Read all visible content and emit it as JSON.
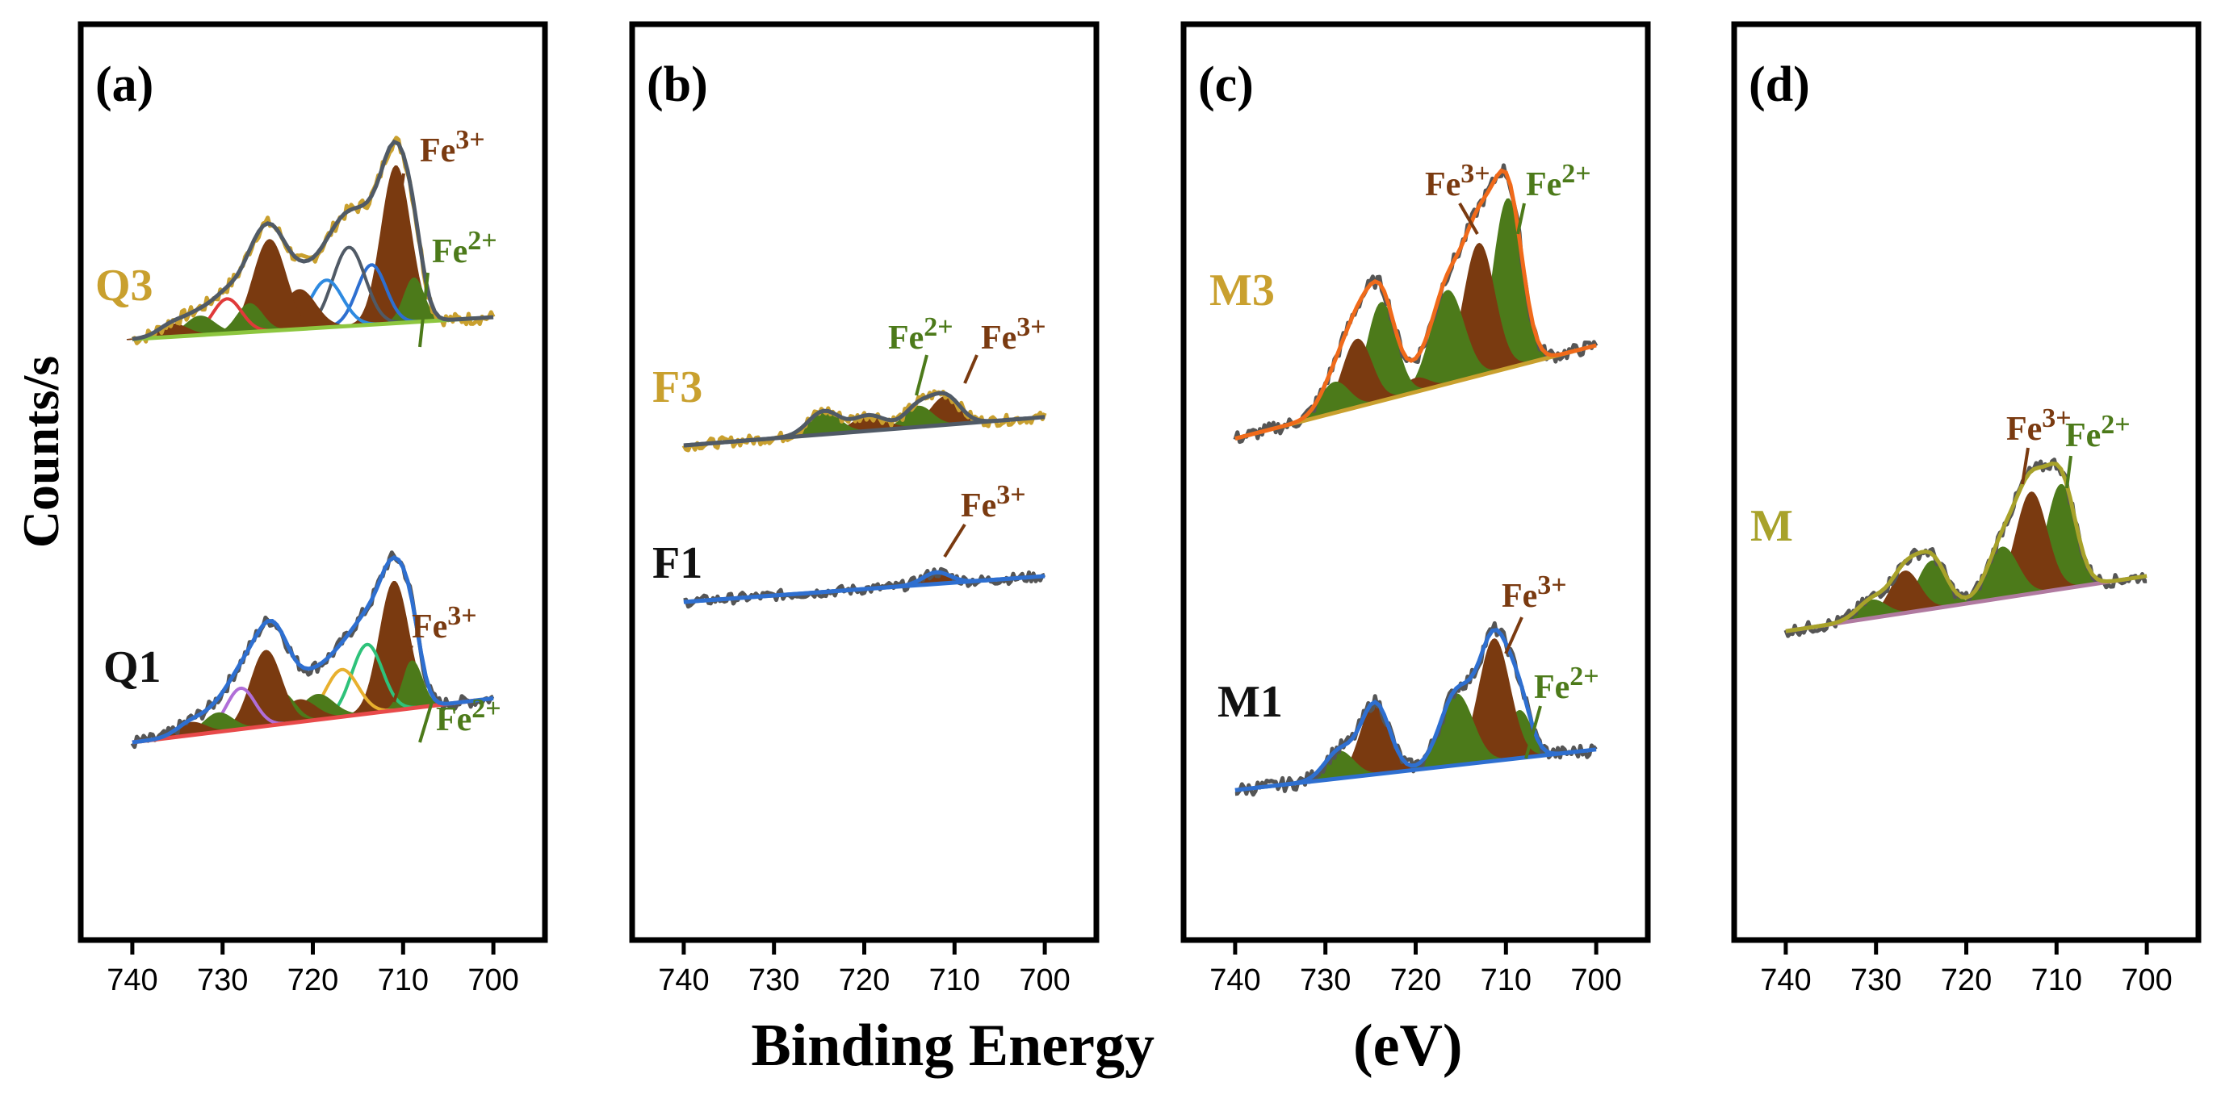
{
  "figure": {
    "ylabel": "Counts/s",
    "xlabel": "Binding Energy",
    "xunit": "(eV)"
  },
  "colors": {
    "fe3": "#7a3a10",
    "fe2": "#4c7a1a",
    "raw": "#555555"
  },
  "chart_data": [
    {
      "type": "line",
      "panel": "(a)",
      "xlim": [
        745,
        695
      ],
      "xticks": [
        740,
        730,
        720,
        710,
        700
      ],
      "spectra": [
        {
          "name": "Q3",
          "label_color": "#c9a02e",
          "fit_color": "#505a66",
          "bg_color": "#8dc63f",
          "raw_color": "#c9a02e",
          "ion_labels": [
            {
              "ion": "Fe",
              "sup": "3+",
              "color": "#7a3a10"
            },
            {
              "ion": "Fe",
              "sup": "2+",
              "color": "#4c7a1a"
            }
          ],
          "baseline": [
            8,
            22
          ],
          "level": 0.0,
          "peaks": [
            {
              "center": 710.8,
              "height": 100,
              "width": 1.6,
              "color": "#7a3a10",
              "filled": true
            },
            {
              "center": 708.8,
              "height": 28,
              "width": 1.1,
              "color": "#4c7a1a",
              "filled": true
            },
            {
              "center": 713.5,
              "height": 38,
              "width": 1.6,
              "color": "#2e6fd0",
              "filled": false
            },
            {
              "center": 716.0,
              "height": 50,
              "width": 1.8,
              "color": "#505a66",
              "filled": false
            },
            {
              "center": 718.5,
              "height": 30,
              "width": 1.8,
              "color": "#2e8ae0",
              "filled": false
            },
            {
              "center": 721.5,
              "height": 25,
              "width": 1.8,
              "color": "#7a3a10",
              "filled": true
            },
            {
              "center": 724.8,
              "height": 58,
              "width": 1.8,
              "color": "#7a3a10",
              "filled": true
            },
            {
              "center": 727.0,
              "height": 18,
              "width": 1.4,
              "color": "#4c7a1a",
              "filled": true
            },
            {
              "center": 729.5,
              "height": 22,
              "width": 1.6,
              "color": "#e03a3a",
              "filled": false
            },
            {
              "center": 732.5,
              "height": 12,
              "width": 1.6,
              "color": "#4c7a1a",
              "filled": true
            },
            {
              "center": 735.5,
              "height": 8,
              "width": 1.6,
              "color": "#7a3a10",
              "filled": true
            }
          ]
        },
        {
          "name": "Q1",
          "label_color": "#111111",
          "fit_color": "#2e6fd0",
          "bg_color": "#e84a4a",
          "raw_color": "#555555",
          "ion_labels": [
            {
              "ion": "Fe",
              "sup": "3+",
              "color": "#7a3a10"
            },
            {
              "ion": "Fe",
              "sup": "2+",
              "color": "#4c7a1a"
            }
          ],
          "baseline": [
            0,
            28
          ],
          "level": 0.0,
          "peaks": [
            {
              "center": 711.0,
              "height": 82,
              "width": 1.6,
              "color": "#7a3a10",
              "filled": true
            },
            {
              "center": 709.0,
              "height": 30,
              "width": 1.1,
              "color": "#4c7a1a",
              "filled": true
            },
            {
              "center": 714.0,
              "height": 44,
              "width": 1.7,
              "color": "#2ec27a",
              "filled": false
            },
            {
              "center": 716.8,
              "height": 30,
              "width": 1.8,
              "color": "#e8b02e",
              "filled": false
            },
            {
              "center": 719.5,
              "height": 16,
              "width": 1.8,
              "color": "#4c7a1a",
              "filled": true
            },
            {
              "center": 721.5,
              "height": 14,
              "width": 1.8,
              "color": "#7a3a10",
              "filled": true
            },
            {
              "center": 723.5,
              "height": 20,
              "width": 1.5,
              "color": "#4c7a1a",
              "filled": true
            },
            {
              "center": 725.2,
              "height": 48,
              "width": 1.7,
              "color": "#7a3a10",
              "filled": true
            },
            {
              "center": 728.0,
              "height": 26,
              "width": 1.6,
              "color": "#b06ed8",
              "filled": false
            },
            {
              "center": 730.5,
              "height": 12,
              "width": 1.6,
              "color": "#4c7a1a",
              "filled": true
            },
            {
              "center": 733.5,
              "height": 8,
              "width": 1.6,
              "color": "#7a3a10",
              "filled": true
            }
          ]
        }
      ]
    },
    {
      "type": "line",
      "panel": "(b)",
      "xlim": [
        745,
        695
      ],
      "xticks": [
        740,
        730,
        720,
        710,
        700
      ],
      "spectra": [
        {
          "name": "F3",
          "label_color": "#c9a02e",
          "fit_color": "#505a66",
          "bg_color": "#505a66",
          "raw_color": "#c9a02e",
          "ion_labels": [
            {
              "ion": "Fe",
              "sup": "2+",
              "color": "#4c7a1a"
            },
            {
              "ion": "Fe",
              "sup": "3+",
              "color": "#7a3a10"
            }
          ],
          "baseline": [
            0,
            22
          ],
          "level": 0.0,
          "peaks": [
            {
              "center": 711.0,
              "height": 22,
              "width": 1.6,
              "color": "#7a3a10",
              "filled": true
            },
            {
              "center": 714.0,
              "height": 16,
              "width": 1.5,
              "color": "#4c7a1a",
              "filled": true
            },
            {
              "center": 719.5,
              "height": 12,
              "width": 1.8,
              "color": "#7a3a10",
              "filled": true
            },
            {
              "center": 724.5,
              "height": 18,
              "width": 1.7,
              "color": "#4c7a1a",
              "filled": true
            }
          ]
        },
        {
          "name": "F1",
          "label_color": "#111111",
          "fit_color": "#2e6fd0",
          "bg_color": "#2e6fd0",
          "raw_color": "#555555",
          "ion_labels": [
            {
              "ion": "Fe",
              "sup": "3+",
              "color": "#7a3a10"
            }
          ],
          "baseline": [
            0,
            20
          ],
          "level": 0.0,
          "peaks": [
            {
              "center": 712.0,
              "height": 9,
              "width": 1.5,
              "color": "#7a3a10",
              "filled": true
            }
          ]
        }
      ]
    },
    {
      "type": "line",
      "panel": "(c)",
      "xlim": [
        745,
        695
      ],
      "xticks": [
        740,
        730,
        720,
        710,
        700
      ],
      "spectra": [
        {
          "name": "M3",
          "label_color": "#c9a02e",
          "fit_color": "#f06a1a",
          "bg_color": "#c9a02e",
          "raw_color": "#555555",
          "ion_labels": [
            {
              "ion": "Fe",
              "sup": "3+",
              "color": "#7a3a10"
            },
            {
              "ion": "Fe",
              "sup": "2+",
              "color": "#4c7a1a"
            }
          ],
          "baseline": [
            -35,
            20
          ],
          "level": 0.0,
          "peaks": [
            {
              "center": 709.8,
              "height": 100,
              "width": 1.6,
              "color": "#4c7a1a",
              "filled": true
            },
            {
              "center": 713.0,
              "height": 78,
              "width": 1.7,
              "color": "#7a3a10",
              "filled": true
            },
            {
              "center": 716.5,
              "height": 55,
              "width": 1.8,
              "color": "#4c7a1a",
              "filled": true
            },
            {
              "center": 720.0,
              "height": 8,
              "width": 1.4,
              "color": "#7a3a10",
              "filled": true
            },
            {
              "center": 723.8,
              "height": 58,
              "width": 1.6,
              "color": "#4c7a1a",
              "filled": true
            },
            {
              "center": 726.5,
              "height": 40,
              "width": 1.6,
              "color": "#7a3a10",
              "filled": true
            },
            {
              "center": 729.0,
              "height": 18,
              "width": 1.6,
              "color": "#4c7a1a",
              "filled": true
            }
          ]
        },
        {
          "name": "M1",
          "label_color": "#111111",
          "fit_color": "#2e6fd0",
          "bg_color": "#2e6fd0",
          "raw_color": "#555555",
          "ion_labels": [
            {
              "ion": "Fe",
              "sup": "3+",
              "color": "#7a3a10"
            },
            {
              "ion": "Fe",
              "sup": "2+",
              "color": "#4c7a1a"
            }
          ],
          "baseline": [
            -12,
            12
          ],
          "level": 0.0,
          "peaks": [
            {
              "center": 708.5,
              "height": 28,
              "width": 1.3,
              "color": "#4c7a1a",
              "filled": true
            },
            {
              "center": 711.3,
              "height": 72,
              "width": 1.7,
              "color": "#7a3a10",
              "filled": true
            },
            {
              "center": 715.5,
              "height": 42,
              "width": 1.8,
              "color": "#4c7a1a",
              "filled": true
            },
            {
              "center": 724.5,
              "height": 42,
              "width": 1.6,
              "color": "#7a3a10",
              "filled": true
            },
            {
              "center": 728.5,
              "height": 16,
              "width": 1.6,
              "color": "#4c7a1a",
              "filled": true
            }
          ]
        }
      ]
    },
    {
      "type": "line",
      "panel": "(d)",
      "xlim": [
        745,
        695
      ],
      "xticks": [
        740,
        730,
        720,
        710,
        700
      ],
      "spectra": [
        {
          "name": "M",
          "label_color": "#a8a22a",
          "fit_color": "#a8a22a",
          "bg_color": "#b07aa0",
          "raw_color": "#555555",
          "ion_labels": [
            {
              "ion": "Fe",
              "sup": "3+",
              "color": "#7a3a10"
            },
            {
              "ion": "Fe",
              "sup": "2+",
              "color": "#4c7a1a"
            }
          ],
          "baseline": [
            -25,
            12
          ],
          "level": 0.0,
          "peaks": [
            {
              "center": 709.5,
              "height": 70,
              "width": 1.6,
              "color": "#4c7a1a",
              "filled": true
            },
            {
              "center": 712.8,
              "height": 68,
              "width": 1.7,
              "color": "#7a3a10",
              "filled": true
            },
            {
              "center": 716.0,
              "height": 34,
              "width": 1.7,
              "color": "#4c7a1a",
              "filled": true
            },
            {
              "center": 723.8,
              "height": 32,
              "width": 1.6,
              "color": "#4c7a1a",
              "filled": true
            },
            {
              "center": 726.8,
              "height": 28,
              "width": 1.6,
              "color": "#7a3a10",
              "filled": true
            },
            {
              "center": 730.5,
              "height": 12,
              "width": 1.6,
              "color": "#4c7a1a",
              "filled": true
            }
          ]
        }
      ]
    }
  ]
}
